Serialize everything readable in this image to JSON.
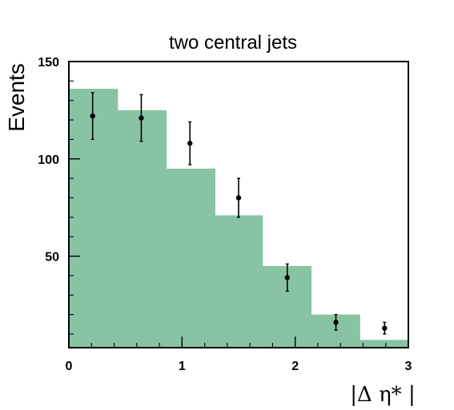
{
  "chart_data": {
    "type": "bar",
    "title": "two central jets",
    "xlabel": "|Δ η* |",
    "ylabel": "Events",
    "xlim": [
      0,
      3
    ],
    "ylim": [
      3,
      150
    ],
    "x_ticks": [
      0,
      1,
      2,
      3
    ],
    "y_ticks": [
      50,
      100,
      150
    ],
    "grid": false,
    "histogram": {
      "bin_edges": [
        0,
        0.43,
        0.86,
        1.29,
        1.71,
        2.14,
        2.57,
        3.0
      ],
      "values": [
        136,
        125,
        95,
        71,
        45,
        20,
        7
      ],
      "color": "#88c4a4"
    },
    "data_points": {
      "x": [
        0.21,
        0.64,
        1.07,
        1.5,
        1.93,
        2.36,
        2.79
      ],
      "y": [
        122,
        121,
        108,
        80,
        39,
        16,
        13
      ],
      "err_up": [
        12,
        12,
        11,
        10,
        7,
        4,
        3
      ],
      "err_down": [
        12,
        12,
        11,
        10,
        7,
        4,
        3
      ],
      "color": "#000000"
    }
  }
}
